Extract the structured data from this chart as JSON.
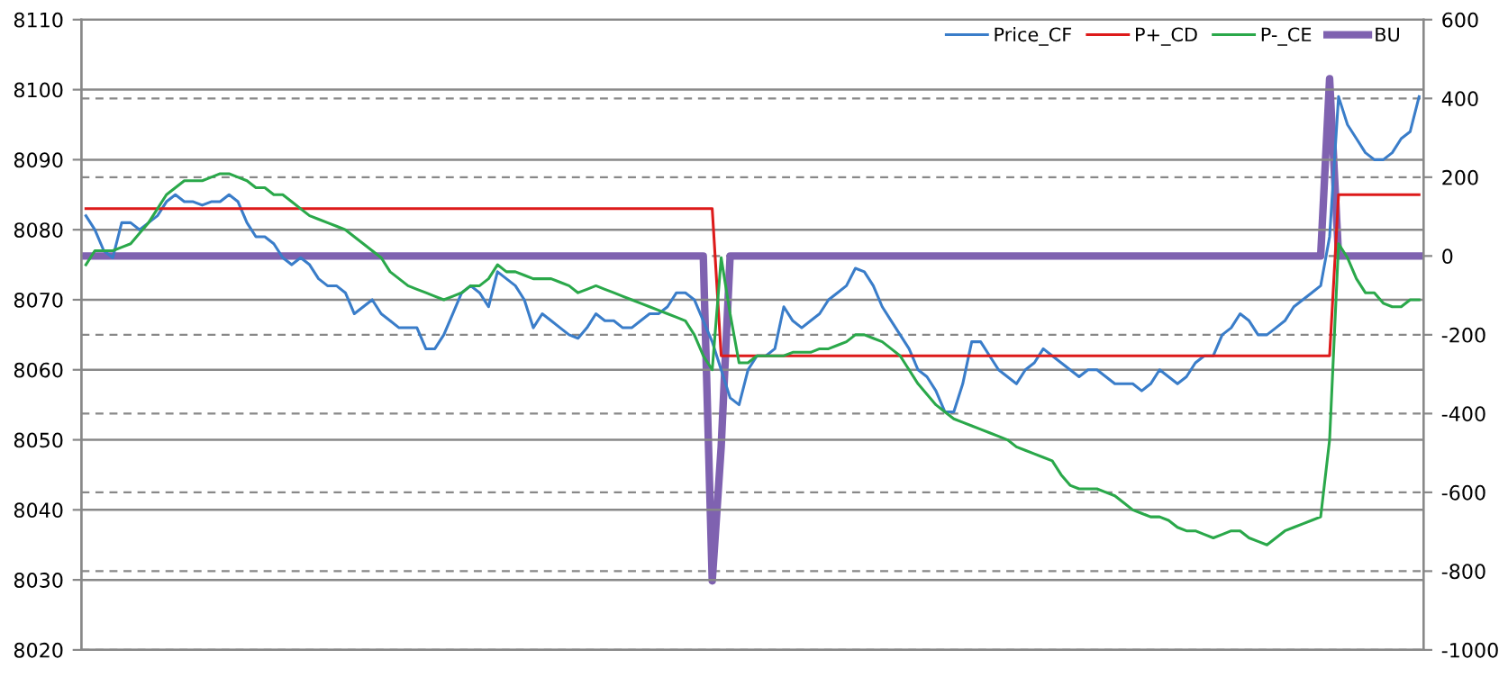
{
  "chart_data": {
    "type": "line",
    "categories": [
      null,
      null,
      null,
      null,
      null,
      null,
      null,
      null,
      null,
      null,
      null,
      null,
      null,
      null,
      null,
      null,
      null,
      null,
      null,
      null,
      null,
      null,
      null,
      null,
      null,
      null,
      null,
      null,
      null,
      null,
      null,
      null,
      null,
      null,
      null,
      null,
      null,
      null,
      null,
      null,
      null,
      null,
      null,
      null,
      null,
      null,
      null,
      null,
      null,
      null,
      null,
      null,
      null,
      null,
      null,
      null,
      null,
      null,
      null,
      null,
      null,
      null,
      null,
      null,
      null,
      null,
      null,
      null,
      null,
      null,
      null,
      null,
      null,
      null,
      null,
      null,
      null,
      null,
      null,
      null,
      null,
      null,
      null,
      null,
      null,
      null,
      null,
      null,
      null,
      null,
      null,
      null,
      null,
      null,
      null,
      null,
      null,
      null,
      null,
      null,
      null,
      null,
      null,
      null,
      null,
      null,
      null,
      null,
      null,
      null,
      null,
      null,
      null,
      null,
      null,
      null,
      null,
      null,
      null,
      null,
      null,
      null,
      null,
      null,
      null,
      null,
      null,
      null,
      null,
      null,
      null,
      null,
      null,
      null,
      null,
      null,
      null,
      null,
      null,
      null,
      null,
      null,
      null,
      null,
      null,
      null,
      null,
      null,
      null,
      null
    ],
    "series": [
      {
        "name": "Price_CF",
        "color": "#3a7dc9",
        "values": [
          8082,
          8080,
          8077,
          8076,
          8081,
          8081,
          8080,
          8081,
          8082,
          8084,
          8085,
          8084,
          8084,
          8083.5,
          8084,
          8084,
          8085,
          8084,
          8081,
          8079,
          8079,
          8078,
          8076,
          8075,
          8076,
          8075,
          8073,
          8072,
          8072,
          8071,
          8068,
          8069,
          8070,
          8068,
          8067,
          8066,
          8066,
          8066,
          8063,
          8063,
          8065,
          8068,
          8071,
          8072,
          8071,
          8069,
          8074,
          8073,
          8072,
          8070,
          8066,
          8068,
          8067,
          8066,
          8065,
          8064.5,
          8066,
          8068,
          8067,
          8067,
          8066,
          8066,
          8067,
          8068,
          8068,
          8069,
          8071,
          8071,
          8070,
          8067,
          8064,
          8060,
          8056,
          8055,
          8060,
          8062,
          8062,
          8063,
          8069,
          8067,
          8066,
          8067,
          8068,
          8070,
          8071,
          8072,
          8074.5,
          8074,
          8072,
          8069,
          8067,
          8065,
          8063,
          8060,
          8059,
          8057,
          8054,
          8054,
          8058,
          8064,
          8064,
          8062,
          8060,
          8059,
          8058,
          8060,
          8061,
          8063,
          8062,
          8061,
          8060,
          8059,
          8060,
          8060,
          8059,
          8058,
          8058,
          8058,
          8057,
          8058,
          8060,
          8059,
          8058,
          8059,
          8061,
          8062,
          8062,
          8065,
          8066,
          8068,
          8067,
          8065,
          8065,
          8066,
          8067,
          8069,
          8070,
          8071,
          8072,
          8079,
          8099,
          8095,
          8093,
          8091,
          8090,
          8090,
          8091,
          8093,
          8094,
          8099
        ]
      },
      {
        "name": "P+_CD",
        "color": "#dd1a1a",
        "values": [
          8083,
          8083,
          8083,
          8083,
          8083,
          8083,
          8083,
          8083,
          8083,
          8083,
          8083,
          8083,
          8083,
          8083,
          8083,
          8083,
          8083,
          8083,
          8083,
          8083,
          8083,
          8083,
          8083,
          8083,
          8083,
          8083,
          8083,
          8083,
          8083,
          8083,
          8083,
          8083,
          8083,
          8083,
          8083,
          8083,
          8083,
          8083,
          8083,
          8083,
          8083,
          8083,
          8083,
          8083,
          8083,
          8083,
          8083,
          8083,
          8083,
          8083,
          8083,
          8083,
          8083,
          8083,
          8083,
          8083,
          8083,
          8083,
          8083,
          8083,
          8083,
          8083,
          8083,
          8083,
          8083,
          8083,
          8083,
          8083,
          8083,
          8083,
          8083,
          8062,
          8062,
          8062,
          8062,
          8062,
          8062,
          8062,
          8062,
          8062,
          8062,
          8062,
          8062,
          8062,
          8062,
          8062,
          8062,
          8062,
          8062,
          8062,
          8062,
          8062,
          8062,
          8062,
          8062,
          8062,
          8062,
          8062,
          8062,
          8062,
          8062,
          8062,
          8062,
          8062,
          8062,
          8062,
          8062,
          8062,
          8062,
          8062,
          8062,
          8062,
          8062,
          8062,
          8062,
          8062,
          8062,
          8062,
          8062,
          8062,
          8062,
          8062,
          8062,
          8062,
          8062,
          8062,
          8062,
          8062,
          8062,
          8062,
          8062,
          8062,
          8062,
          8062,
          8062,
          8062,
          8062,
          8062,
          8062,
          8062,
          8085,
          8085,
          8085,
          8085,
          8085,
          8085,
          8085,
          8085,
          8085,
          8085
        ]
      },
      {
        "name": "P-_CE",
        "color": "#2aa84a",
        "values": [
          8075,
          8077,
          8077,
          8077,
          8077.5,
          8078,
          8079.5,
          8081,
          8083,
          8085,
          8086,
          8087,
          8087,
          8087,
          8087.5,
          8088,
          8088,
          8087.5,
          8087,
          8086,
          8086,
          8085,
          8085,
          8084,
          8083,
          8082,
          8081.5,
          8081,
          8080.5,
          8080,
          8079,
          8078,
          8077,
          8076,
          8074,
          8073,
          8072,
          8071.5,
          8071,
          8070.5,
          8070,
          8070.5,
          8071,
          8072,
          8072,
          8073,
          8075,
          8074,
          8074,
          8073.5,
          8073,
          8073,
          8073,
          8072.5,
          8072,
          8071,
          8071.5,
          8072,
          8071.5,
          8071,
          8070.5,
          8070,
          8069.5,
          8069,
          8068.5,
          8068,
          8067.5,
          8067,
          8065,
          8062,
          8060,
          8076,
          8068,
          8061,
          8061,
          8062,
          8062,
          8062,
          8062,
          8062.5,
          8062.5,
          8062.5,
          8063,
          8063,
          8063.5,
          8064,
          8065,
          8065,
          8064.5,
          8064,
          8063,
          8062,
          8060,
          8058,
          8056.5,
          8055,
          8054,
          8053,
          8052.5,
          8052,
          8051.5,
          8051,
          8050.5,
          8050,
          8049,
          8048.5,
          8048,
          8047.5,
          8047,
          8045,
          8043.5,
          8043,
          8043,
          8043,
          8042.5,
          8042,
          8041,
          8040,
          8039.5,
          8039,
          8039,
          8038.5,
          8037.5,
          8037,
          8037,
          8036.5,
          8036,
          8036.5,
          8037,
          8037,
          8036,
          8035.5,
          8035,
          8036,
          8037,
          8037.5,
          8038,
          8038.5,
          8039,
          8050,
          8078,
          8076,
          8073,
          8071,
          8071,
          8069.5,
          8069,
          8069,
          8070,
          8070
        ]
      },
      {
        "name": "BU",
        "color": "#7f62b0",
        "axis": "y2",
        "values": [
          0,
          0,
          0,
          0,
          0,
          0,
          0,
          0,
          0,
          0,
          0,
          0,
          0,
          0,
          0,
          0,
          0,
          0,
          0,
          0,
          0,
          0,
          0,
          0,
          0,
          0,
          0,
          0,
          0,
          0,
          0,
          0,
          0,
          0,
          0,
          0,
          0,
          0,
          0,
          0,
          0,
          0,
          0,
          0,
          0,
          0,
          0,
          0,
          0,
          0,
          0,
          0,
          0,
          0,
          0,
          0,
          0,
          0,
          0,
          0,
          0,
          0,
          0,
          0,
          0,
          0,
          0,
          0,
          0,
          0,
          -825,
          -485,
          0,
          0,
          0,
          0,
          0,
          0,
          0,
          0,
          0,
          0,
          0,
          0,
          0,
          0,
          0,
          0,
          0,
          0,
          0,
          0,
          0,
          0,
          0,
          0,
          0,
          0,
          0,
          0,
          0,
          0,
          0,
          0,
          0,
          0,
          0,
          0,
          0,
          0,
          0,
          0,
          0,
          0,
          0,
          0,
          0,
          0,
          0,
          0,
          0,
          0,
          0,
          0,
          0,
          0,
          0,
          0,
          0,
          0,
          0,
          0,
          0,
          0,
          0,
          0,
          0,
          0,
          0,
          450,
          0,
          0,
          0,
          0,
          0,
          0,
          0,
          0,
          0,
          0
        ]
      }
    ],
    "ylim": [
      8020,
      8110
    ],
    "yticks": [
      8020,
      8030,
      8040,
      8050,
      8060,
      8070,
      8080,
      8090,
      8100,
      8110
    ],
    "y2lim": [
      -1000,
      600
    ],
    "y2ticks": [
      -1000,
      -800,
      -600,
      -400,
      -200,
      0,
      200,
      400,
      600
    ],
    "grid": true,
    "legend": "top right",
    "marker": "none",
    "line_style": "solid"
  }
}
